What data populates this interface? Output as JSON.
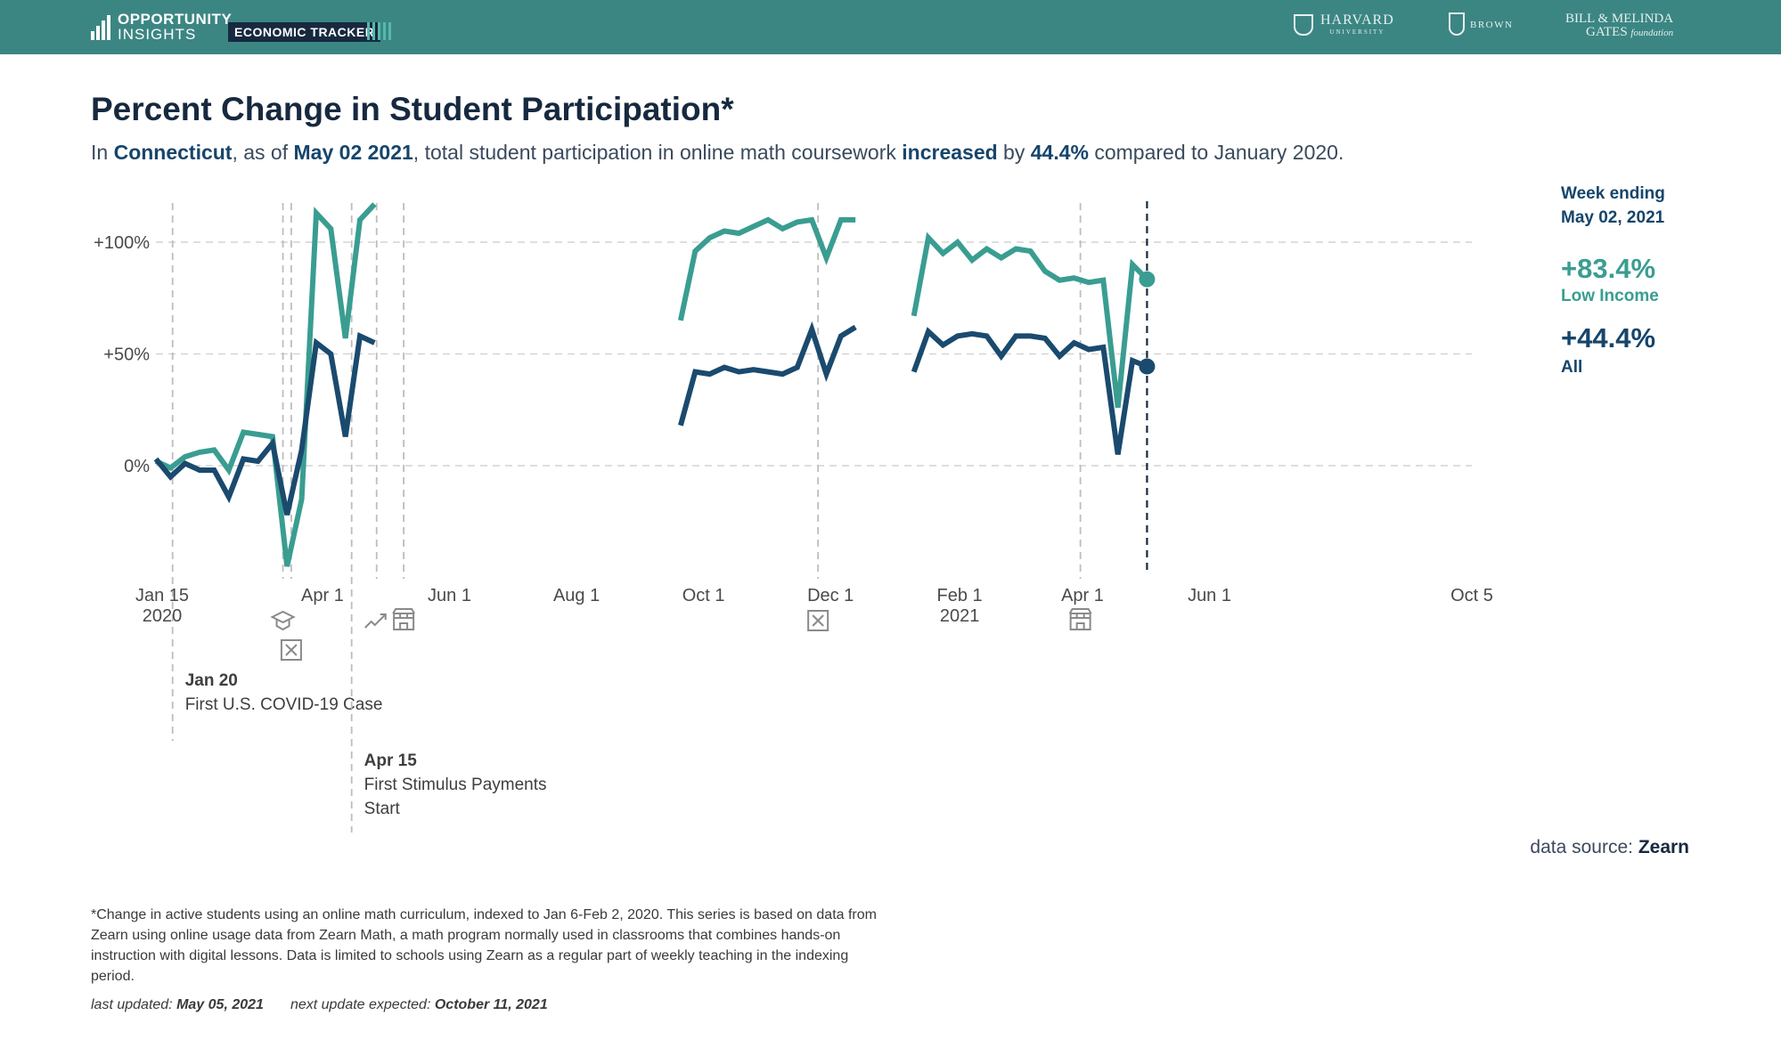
{
  "header": {
    "logo_line1": "OPPORTUNITY",
    "logo_line2": "INSIGHTS",
    "tracker_label": "ECONOMIC TRACKER",
    "partners": {
      "harvard": "HARVARD",
      "harvard_sub": "UNIVERSITY",
      "brown": "BROWN",
      "gates_line1": "BILL & MELINDA",
      "gates_line2": "GATES",
      "gates_line2b": "foundation"
    },
    "colors": {
      "bar": "#3b8683",
      "pill": "#16293f"
    }
  },
  "title": "Percent Change in Student Participation*",
  "subtitle": {
    "p1": "In ",
    "state": "Connecticut",
    "p2": ", as of ",
    "date": "May 02 2021",
    "p3": ", total student participation in online math coursework ",
    "direction": "increased",
    "p4": " by ",
    "value": "44.4%",
    "p5": " compared to January 2020."
  },
  "legend": {
    "week_line1": "Week ending",
    "week_line2": "May 02, 2021",
    "low_income_value": "+83.4%",
    "low_income_label": "Low Income",
    "all_value": "+44.4%",
    "all_label": "All"
  },
  "chart_data": {
    "type": "line",
    "x_start": "2020-01-12",
    "x_end": "2021-10-05",
    "ylim": [
      -50,
      120
    ],
    "y_ticks": [
      {
        "value": 0,
        "label": "0%"
      },
      {
        "value": 50,
        "label": "+50%"
      },
      {
        "value": 100,
        "label": "+100%"
      }
    ],
    "x_ticks": [
      {
        "date": "2020-01-15",
        "label": "Jan 15",
        "label2": "2020"
      },
      {
        "date": "2020-04-01",
        "label": "Apr 1"
      },
      {
        "date": "2020-06-01",
        "label": "Jun 1"
      },
      {
        "date": "2020-08-01",
        "label": "Aug 1"
      },
      {
        "date": "2020-10-01",
        "label": "Oct 1"
      },
      {
        "date": "2020-12-01",
        "label": "Dec 1"
      },
      {
        "date": "2021-02-01",
        "label": "Feb 1",
        "label2": "2021"
      },
      {
        "date": "2021-04-01",
        "label": "Apr 1"
      },
      {
        "date": "2021-06-01",
        "label": "Jun 1"
      },
      {
        "date": "2021-10-05",
        "label": "Oct 5"
      }
    ],
    "grid": "horizontal-dashed",
    "current_week": "2021-05-02",
    "series": [
      {
        "name": "Low Income",
        "color": "#3a9d91",
        "segments": [
          [
            [
              "2020-01-12",
              2
            ],
            [
              "2020-01-19",
              -1
            ],
            [
              "2020-01-26",
              4
            ],
            [
              "2020-02-02",
              6
            ],
            [
              "2020-02-09",
              7
            ],
            [
              "2020-02-16",
              -2
            ],
            [
              "2020-02-23",
              15
            ],
            [
              "2020-03-01",
              14
            ],
            [
              "2020-03-08",
              13
            ],
            [
              "2020-03-15",
              -45
            ],
            [
              "2020-03-22",
              -15
            ],
            [
              "2020-03-29",
              113
            ],
            [
              "2020-04-05",
              106
            ],
            [
              "2020-04-12",
              57
            ],
            [
              "2020-04-19",
              110
            ],
            [
              "2020-04-26",
              117
            ]
          ],
          [
            [
              "2020-09-20",
              65
            ],
            [
              "2020-09-27",
              96
            ],
            [
              "2020-10-04",
              102
            ],
            [
              "2020-10-11",
              105
            ],
            [
              "2020-10-18",
              104
            ],
            [
              "2020-10-25",
              107
            ],
            [
              "2020-11-01",
              110
            ],
            [
              "2020-11-08",
              106
            ],
            [
              "2020-11-15",
              109
            ],
            [
              "2020-11-22",
              110
            ],
            [
              "2020-11-29",
              93
            ],
            [
              "2020-12-06",
              110
            ],
            [
              "2020-12-13",
              110
            ]
          ],
          [
            [
              "2021-01-10",
              67
            ],
            [
              "2021-01-17",
              102
            ],
            [
              "2021-01-24",
              95
            ],
            [
              "2021-01-31",
              100
            ],
            [
              "2021-02-07",
              92
            ],
            [
              "2021-02-14",
              97
            ],
            [
              "2021-02-21",
              93
            ],
            [
              "2021-02-28",
              97
            ],
            [
              "2021-03-07",
              96
            ],
            [
              "2021-03-14",
              87
            ],
            [
              "2021-03-21",
              83
            ],
            [
              "2021-03-28",
              84
            ],
            [
              "2021-04-04",
              82
            ],
            [
              "2021-04-11",
              83
            ],
            [
              "2021-04-18",
              26
            ],
            [
              "2021-04-25",
              90
            ],
            [
              "2021-05-02",
              83.4
            ]
          ]
        ]
      },
      {
        "name": "All",
        "color": "#1a4a6e",
        "segments": [
          [
            [
              "2020-01-12",
              3
            ],
            [
              "2020-01-19",
              -5
            ],
            [
              "2020-01-26",
              1
            ],
            [
              "2020-02-02",
              -2
            ],
            [
              "2020-02-09",
              -2
            ],
            [
              "2020-02-16",
              -14
            ],
            [
              "2020-02-23",
              3
            ],
            [
              "2020-03-01",
              2
            ],
            [
              "2020-03-08",
              10
            ],
            [
              "2020-03-15",
              -22
            ],
            [
              "2020-03-22",
              7
            ],
            [
              "2020-03-29",
              55
            ],
            [
              "2020-04-05",
              50
            ],
            [
              "2020-04-12",
              13
            ],
            [
              "2020-04-19",
              58
            ],
            [
              "2020-04-26",
              55
            ]
          ],
          [
            [
              "2020-09-20",
              18
            ],
            [
              "2020-09-27",
              42
            ],
            [
              "2020-10-04",
              41
            ],
            [
              "2020-10-11",
              44
            ],
            [
              "2020-10-18",
              42
            ],
            [
              "2020-10-25",
              43
            ],
            [
              "2020-11-01",
              42
            ],
            [
              "2020-11-08",
              41
            ],
            [
              "2020-11-15",
              44
            ],
            [
              "2020-11-22",
              61
            ],
            [
              "2020-11-29",
              41
            ],
            [
              "2020-12-06",
              58
            ],
            [
              "2020-12-13",
              62
            ]
          ],
          [
            [
              "2021-01-10",
              42
            ],
            [
              "2021-01-17",
              60
            ],
            [
              "2021-01-24",
              54
            ],
            [
              "2021-01-31",
              58
            ],
            [
              "2021-02-07",
              59
            ],
            [
              "2021-02-14",
              58
            ],
            [
              "2021-02-21",
              49
            ],
            [
              "2021-02-28",
              58
            ],
            [
              "2021-03-07",
              58
            ],
            [
              "2021-03-14",
              57
            ],
            [
              "2021-03-21",
              49
            ],
            [
              "2021-03-28",
              55
            ],
            [
              "2021-04-04",
              52
            ],
            [
              "2021-04-11",
              53
            ],
            [
              "2021-04-18",
              5
            ],
            [
              "2021-04-25",
              47
            ],
            [
              "2021-05-02",
              44.4
            ]
          ]
        ]
      }
    ],
    "events": [
      {
        "date": "2020-01-20",
        "icon": "none",
        "head": "Jan 20",
        "text": [
          "First U.S. COVID-19 Case"
        ]
      },
      {
        "date": "2020-03-13",
        "icon": "school-closure-icon"
      },
      {
        "date": "2020-03-17",
        "icon": "lockdown-icon"
      },
      {
        "date": "2020-04-15",
        "icon": "none",
        "head": "Apr 15",
        "text": [
          "First Stimulus Payments",
          "Start"
        ]
      },
      {
        "date": "2020-04-27",
        "icon": "stimulus-trend-icon"
      },
      {
        "date": "2020-05-10",
        "icon": "business-reopening-icon"
      },
      {
        "date": "2020-11-25",
        "icon": "lockdown-icon"
      },
      {
        "date": "2021-03-31",
        "icon": "business-reopening-icon"
      }
    ]
  },
  "source": {
    "label": "data source: ",
    "name": "Zearn"
  },
  "footnote": "*Change in active students using an online math curriculum, indexed to Jan 6-Feb 2, 2020. This series is based on data from Zearn using online usage data from Zearn Math, a math program normally used in classrooms that combines hands-on instruction with digital lessons. Data is limited to schools using Zearn as a regular part of weekly teaching in the indexing period.",
  "updated": {
    "last_label": "last updated: ",
    "last_date": "May 05, 2021",
    "next_label": "next update expected: ",
    "next_date": "October 11, 2021"
  }
}
